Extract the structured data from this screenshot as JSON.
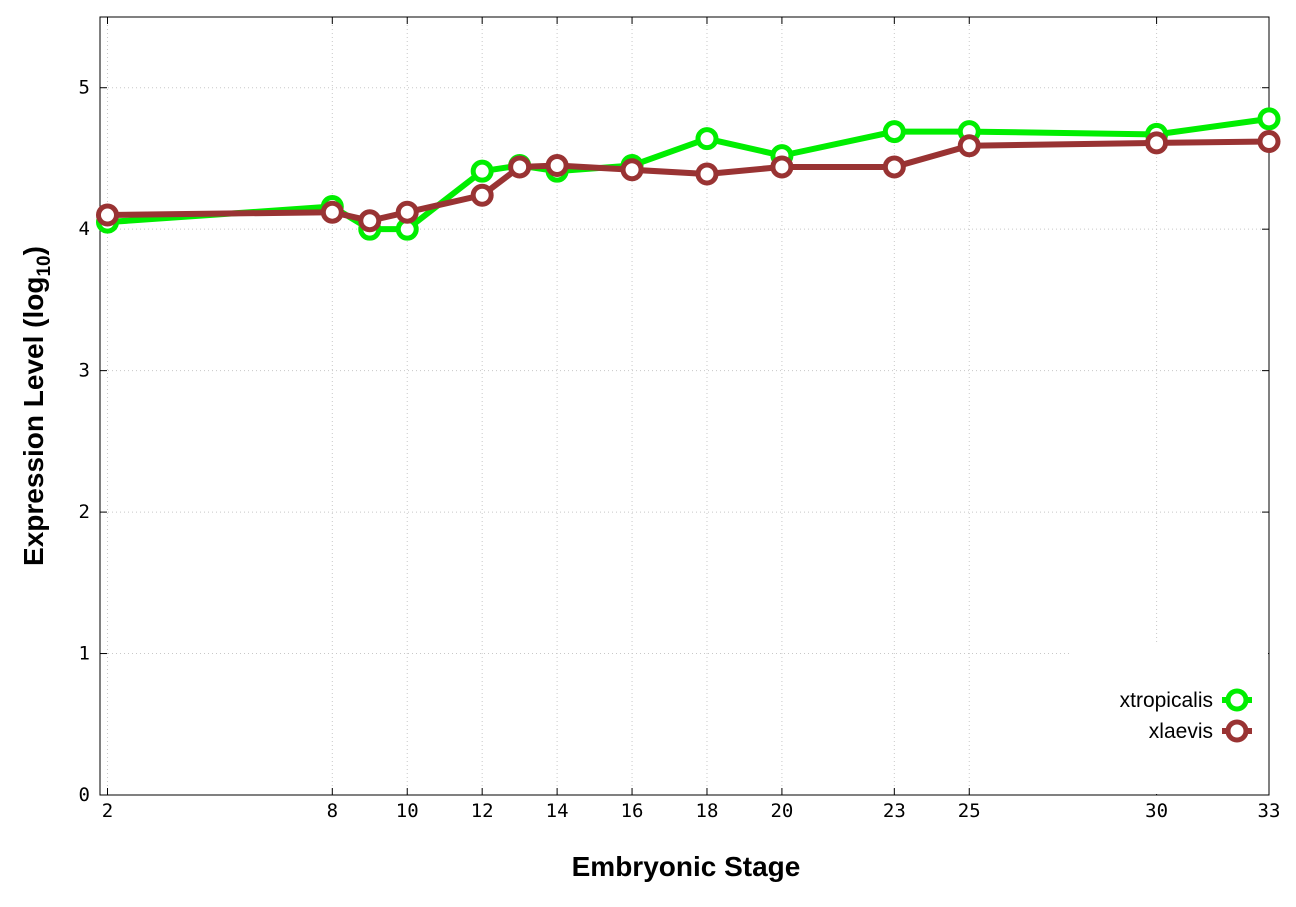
{
  "chart_data": {
    "type": "line",
    "xlabel": "Embryonic Stage",
    "ylabel_main": "Expression Level (log",
    "ylabel_sub": "10",
    "ylabel_close": ")",
    "xlim": [
      1.8,
      33
    ],
    "ylim": [
      0,
      5.5
    ],
    "x_ticks": [
      2,
      8,
      10,
      12,
      14,
      16,
      18,
      20,
      23,
      25,
      30,
      33
    ],
    "x_tick_labels": [
      "2",
      "8",
      "10",
      "12",
      "14",
      "16",
      "18",
      "20",
      "23",
      "25",
      "30",
      "33"
    ],
    "y_ticks": [
      0,
      1,
      2,
      3,
      4,
      5
    ],
    "y_tick_labels": [
      "0",
      "1",
      "2",
      "3",
      "4",
      "5"
    ],
    "grid": true,
    "legend_position": "bottom-right",
    "x": [
      2,
      8,
      9,
      10,
      12,
      13,
      14,
      16,
      18,
      20,
      23,
      25,
      30,
      33
    ],
    "series": [
      {
        "name": "xtropicalis",
        "color": "#00ee00",
        "values": [
          4.05,
          4.16,
          4.0,
          4.0,
          4.41,
          4.45,
          4.41,
          4.45,
          4.64,
          4.52,
          4.69,
          4.69,
          4.67,
          4.78
        ]
      },
      {
        "name": "xlaevis",
        "color": "#993333",
        "values": [
          4.1,
          4.12,
          4.06,
          4.12,
          4.24,
          4.44,
          4.45,
          4.42,
          4.39,
          4.44,
          4.44,
          4.59,
          4.61,
          4.62
        ]
      }
    ]
  }
}
